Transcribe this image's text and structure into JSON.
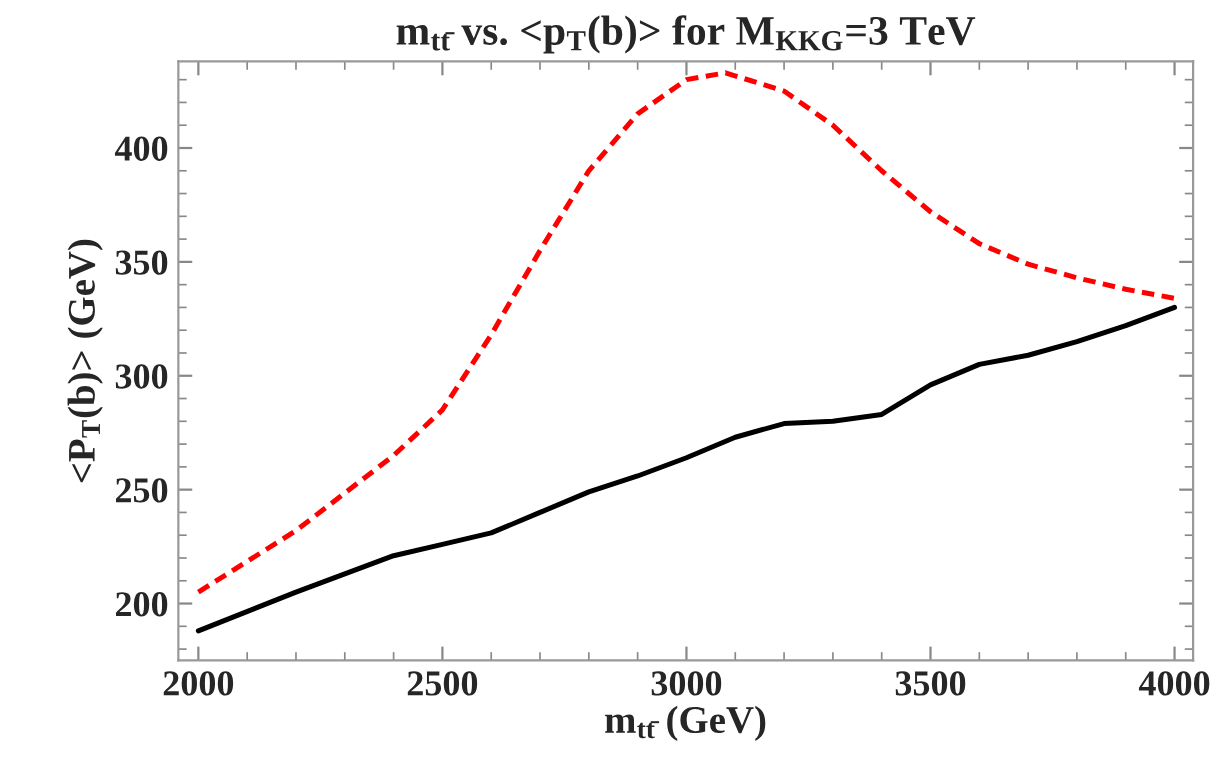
{
  "chart_data": {
    "type": "line",
    "title": "m$_{tt̄}$ vs. <p$_{T}$(b)> for M$_{KKG}$=3 TeV",
    "xlabel": "m$_{tt̄}$ (GeV)",
    "ylabel": "<P$_{T}$(b)> (GeV)",
    "x": [
      2000,
      2200,
      2400,
      2500,
      2600,
      2700,
      2800,
      2900,
      3000,
      3080,
      3200,
      3300,
      3400,
      3500,
      3600,
      3700,
      3800,
      3900,
      4000
    ],
    "series": [
      {
        "color": "#ff0000",
        "line_style": "dashed",
        "values": [
          205,
          232,
          265,
          285,
          318,
          355,
          390,
          415,
          430,
          433,
          425,
          410,
          390,
          372,
          358,
          349,
          343,
          338,
          334
        ]
      },
      {
        "color": "#000000",
        "line_style": "solid",
        "x": [
          2000,
          2200,
          2400,
          2500,
          2600,
          2700,
          2800,
          2900,
          3000,
          3100,
          3200,
          3300,
          3400,
          3500,
          3600,
          3700,
          3800,
          3900,
          4000
        ],
        "values": [
          188,
          205,
          221,
          226,
          231,
          240,
          249,
          256,
          264,
          273,
          279,
          280,
          283,
          296,
          305,
          309,
          315,
          322,
          330
        ]
      }
    ],
    "xlim": [
      1959,
      4038
    ],
    "ylim": [
      175,
      438
    ],
    "xticks": [
      2000,
      2500,
      3000,
      3500,
      4000
    ],
    "yticks": [
      200,
      250,
      300,
      350,
      400
    ],
    "grid": false,
    "marker": "none"
  }
}
